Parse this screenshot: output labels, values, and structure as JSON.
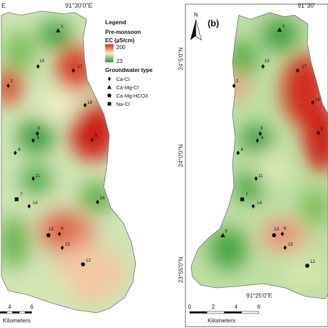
{
  "panel_a": {
    "top_coord": "91°30'0\"E",
    "top_left_fragment": "E",
    "legend_title": "Legend",
    "season": "Pre-monsoon",
    "ec_label": "EC (µS/cm)",
    "ec_high": "200",
    "ec_low": "23",
    "gw_title": "Groundwater type",
    "gw_types": [
      {
        "label": "Ca-Cl",
        "symbol": "diamond"
      },
      {
        "label": "Ca-Mg-Cl",
        "symbol": "triangle"
      },
      {
        "label": "Ca-Mg-HCO3",
        "symbol": "pentagon"
      },
      {
        "label": "Na-Cl",
        "symbol": "square"
      }
    ],
    "wells": [
      {
        "id": "1",
        "type": "Ca-Mg-Cl"
      },
      {
        "id": "10",
        "type": "Ca-Cl"
      },
      {
        "id": "17",
        "type": "Ca-Cl"
      },
      {
        "id": "2",
        "type": "Ca-Cl"
      },
      {
        "id": "18",
        "type": "Ca-Cl"
      },
      {
        "id": "3",
        "type": "Ca-Cl"
      },
      {
        "id": "4",
        "type": "Ca-Cl"
      },
      {
        "id": "8",
        "type": "Ca-Cl"
      },
      {
        "id": "9",
        "type": "Ca-Cl"
      },
      {
        "id": "11",
        "type": "Ca-Cl"
      },
      {
        "id": "7",
        "type": "Na-Cl"
      },
      {
        "id": "14",
        "type": "Ca-Cl"
      },
      {
        "id": "16",
        "type": "Ca-Cl"
      },
      {
        "id": "13",
        "type": "Ca-Mg-HCO3"
      },
      {
        "id": "6",
        "type": "Ca-Cl"
      },
      {
        "id": "15",
        "type": "Ca-Cl"
      },
      {
        "id": "12",
        "type": "Ca-Mg-HCO3"
      }
    ],
    "scale_ticks": [
      "4",
      "6"
    ],
    "scale_unit": "Kilometers"
  },
  "panel_b": {
    "panel_label": "(b)",
    "north": "N",
    "top_coord_fragment": "91°30'",
    "lat_labels": [
      "24°5'0\"N",
      "24°0'0\"N",
      "23°55'0\"N"
    ],
    "bottom_coord": "91°25'0\"E",
    "wells": [
      {
        "id": "1",
        "type": "Ca-Mg-Cl"
      },
      {
        "id": "10",
        "type": "Ca-Cl"
      },
      {
        "id": "17",
        "type": "Ca-Cl"
      },
      {
        "id": "2",
        "type": "Ca-Cl"
      },
      {
        "id": "18",
        "type": "Ca-Cl"
      },
      {
        "id": "3",
        "type": "Ca-Cl"
      },
      {
        "id": "4",
        "type": "Ca-Cl"
      },
      {
        "id": "8",
        "type": "Ca-Cl"
      },
      {
        "id": "9",
        "type": "Ca-Cl"
      },
      {
        "id": "11",
        "type": "Ca-Cl"
      },
      {
        "id": "7",
        "type": "Na-Cl"
      },
      {
        "id": "14",
        "type": "Ca-Cl"
      },
      {
        "id": "5",
        "type": "Ca-Mg-Cl"
      },
      {
        "id": "13",
        "type": "Ca-Mg-HCO3"
      },
      {
        "id": "6",
        "type": "Ca-Cl"
      },
      {
        "id": "15",
        "type": "Ca-Cl"
      },
      {
        "id": "12",
        "type": "Ca-Mg-HCO3"
      }
    ],
    "scale_ticks": [
      "0",
      "2",
      "4",
      "6"
    ],
    "scale_unit": "Kilometers"
  },
  "colors": {
    "high": "#d42a1c",
    "mid": "#f6eec3",
    "low": "#2f9a3a"
  }
}
